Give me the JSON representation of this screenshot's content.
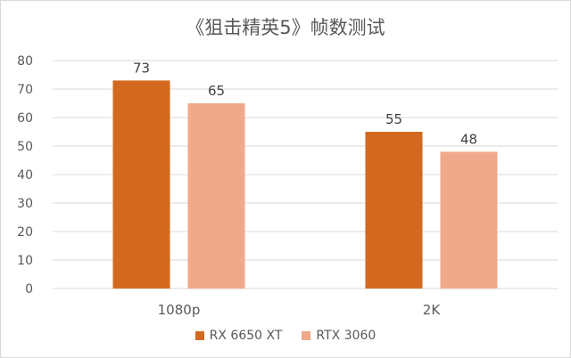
{
  "chart_data": {
    "type": "bar",
    "title": "《狙击精英5》帧数测试",
    "categories": [
      "1080p",
      "2K"
    ],
    "series": [
      {
        "name": "RX 6650 XT",
        "values": [
          73,
          55
        ],
        "color": "#d2691e"
      },
      {
        "name": "RTX 3060",
        "values": [
          65,
          48
        ],
        "color": "#f0a98b"
      }
    ],
    "ylim": [
      0,
      80
    ],
    "yticks": [
      0,
      10,
      20,
      30,
      40,
      50,
      60,
      70,
      80
    ],
    "grid": true,
    "legend_position": "bottom"
  }
}
